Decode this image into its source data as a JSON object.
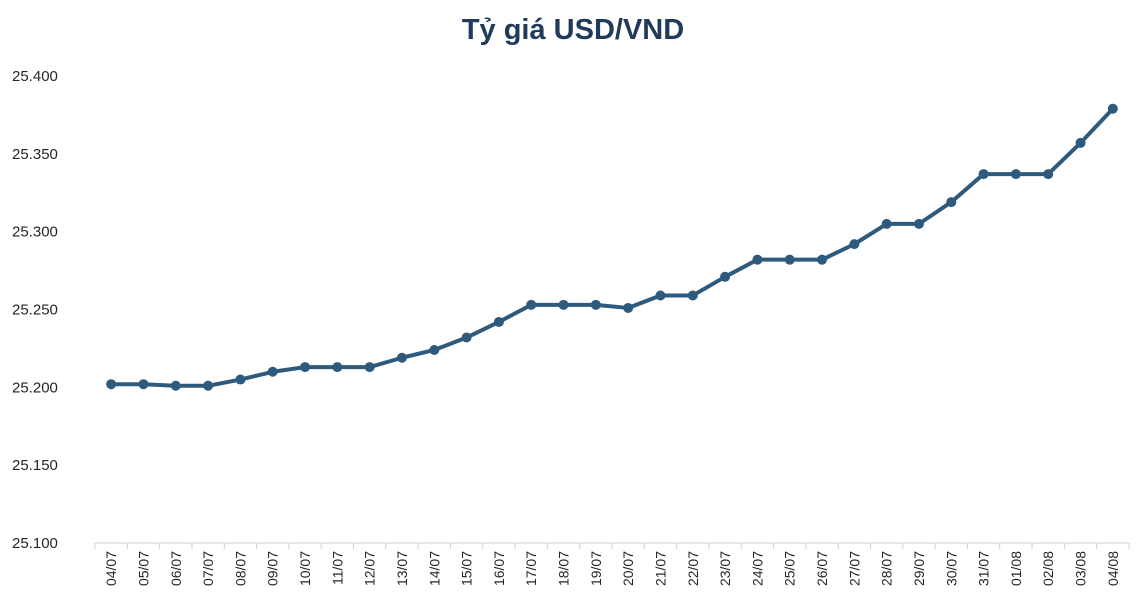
{
  "chart_data": {
    "type": "line",
    "title": "Tỷ giá USD/VND",
    "xlabel": "",
    "ylabel": "",
    "categories": [
      "04/07",
      "05/07",
      "06/07",
      "07/07",
      "08/07",
      "09/07",
      "10/07",
      "11/07",
      "12/07",
      "13/07",
      "14/07",
      "15/07",
      "16/07",
      "17/07",
      "18/07",
      "19/07",
      "20/07",
      "21/07",
      "22/07",
      "23/07",
      "24/07",
      "25/07",
      "26/07",
      "27/07",
      "28/07",
      "29/07",
      "30/07",
      "31/07",
      "01/08",
      "02/08",
      "03/08",
      "04/08"
    ],
    "series": [
      {
        "values": [
          25202,
          25202,
          25201,
          25201,
          25205,
          25210,
          25213,
          25213,
          25213,
          25219,
          25224,
          25232,
          25242,
          25253,
          25253,
          25253,
          25251,
          25259,
          25259,
          25271,
          25282,
          25282,
          25282,
          25292,
          25305,
          25305,
          25319,
          25337,
          25337,
          25337,
          25357,
          25379
        ],
        "color": "#2e5a7e"
      }
    ],
    "ylim": [
      25100,
      25400
    ],
    "yticks": [
      25100,
      25150,
      25200,
      25250,
      25300,
      25350,
      25400
    ],
    "ytick_labels": [
      "25.100",
      "25.150",
      "25.200",
      "25.250",
      "25.300",
      "25.350",
      "25.400"
    ],
    "grid": false,
    "legend": "none"
  }
}
